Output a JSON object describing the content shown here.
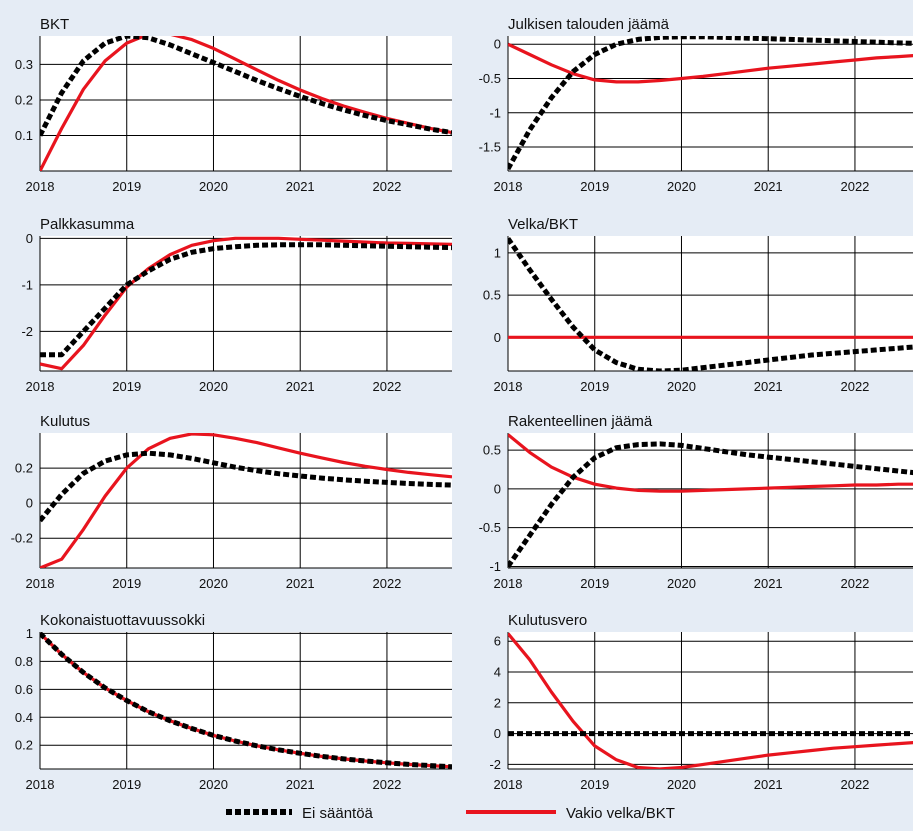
{
  "colors": {
    "background": "#e5ecf5",
    "plot_bg": "#ffffff",
    "ei_saantoa": "#000000",
    "vakio_velka": "#e8141e"
  },
  "legend": {
    "position": "bottom-center",
    "items": [
      "Ei sääntöä",
      "Vakio velka/BKT"
    ]
  },
  "chart_data": [
    {
      "type": "line",
      "title": "BKT",
      "xlabel": "",
      "ylabel": "",
      "xlim": [
        2018,
        2022.75
      ],
      "ylim": [
        0,
        0.38
      ],
      "xticks": [
        "2018",
        "2019",
        "2020",
        "2021",
        "2022"
      ],
      "yticks": [
        "0.1",
        "0.2",
        "0.3"
      ],
      "yticks_values": [
        0.1,
        0.2,
        0.3
      ],
      "x": [
        2018,
        2018.25,
        2018.5,
        2018.75,
        2019,
        2019.25,
        2019.5,
        2019.75,
        2020,
        2020.25,
        2020.5,
        2020.75,
        2021,
        2021.25,
        2021.5,
        2021.75,
        2022,
        2022.25,
        2022.5,
        2022.75
      ],
      "series": [
        {
          "name": "Ei sääntöä",
          "values": [
            0.1,
            0.22,
            0.31,
            0.36,
            0.38,
            0.375,
            0.355,
            0.33,
            0.305,
            0.28,
            0.255,
            0.232,
            0.21,
            0.19,
            0.172,
            0.156,
            0.142,
            0.13,
            0.118,
            0.108
          ]
        },
        {
          "name": "Vakio velka/BKT",
          "values": [
            0.0,
            0.12,
            0.23,
            0.31,
            0.36,
            0.385,
            0.385,
            0.37,
            0.345,
            0.315,
            0.285,
            0.255,
            0.228,
            0.204,
            0.183,
            0.165,
            0.148,
            0.134,
            0.12,
            0.108
          ]
        }
      ]
    },
    {
      "type": "line",
      "title": "Julkisen talouden jäämä",
      "xlabel": "",
      "ylabel": "",
      "xlim": [
        2018,
        2022.75
      ],
      "ylim": [
        -1.85,
        0.12
      ],
      "xticks": [
        "2018",
        "2019",
        "2020",
        "2021",
        "2022"
      ],
      "yticks": [
        "-1.5",
        "-1",
        "-0.5",
        "0"
      ],
      "yticks_values": [
        -1.5,
        -1,
        -0.5,
        0
      ],
      "x": [
        2018,
        2018.25,
        2018.5,
        2018.75,
        2019,
        2019.25,
        2019.5,
        2019.75,
        2020,
        2020.25,
        2020.5,
        2020.75,
        2021,
        2021.25,
        2021.5,
        2021.75,
        2022,
        2022.25,
        2022.5,
        2022.75
      ],
      "series": [
        {
          "name": "Ei sääntöä",
          "values": [
            -1.82,
            -1.25,
            -0.78,
            -0.4,
            -0.15,
            0.0,
            0.07,
            0.1,
            0.11,
            0.11,
            0.1,
            0.09,
            0.08,
            0.07,
            0.06,
            0.05,
            0.04,
            0.03,
            0.02,
            0.01
          ]
        },
        {
          "name": "Vakio velka/BKT",
          "values": [
            0.0,
            -0.15,
            -0.3,
            -0.43,
            -0.52,
            -0.55,
            -0.55,
            -0.53,
            -0.5,
            -0.47,
            -0.43,
            -0.39,
            -0.35,
            -0.32,
            -0.29,
            -0.26,
            -0.23,
            -0.2,
            -0.18,
            -0.16
          ]
        }
      ]
    },
    {
      "type": "line",
      "title": "Palkkasumma",
      "xlabel": "",
      "ylabel": "",
      "xlim": [
        2018,
        2022.75
      ],
      "ylim": [
        -2.85,
        0.05
      ],
      "xticks": [
        "2018",
        "2019",
        "2020",
        "2021",
        "2022"
      ],
      "yticks": [
        "-2",
        "-1",
        "0"
      ],
      "yticks_values": [
        -2,
        -1,
        0
      ],
      "x": [
        2018,
        2018.25,
        2018.5,
        2018.75,
        2019,
        2019.25,
        2019.5,
        2019.75,
        2020,
        2020.25,
        2020.5,
        2020.75,
        2021,
        2021.25,
        2021.5,
        2021.75,
        2022,
        2022.25,
        2022.5,
        2022.75
      ],
      "series": [
        {
          "name": "Ei sääntöä",
          "values": [
            -2.5,
            -2.5,
            -2.0,
            -1.5,
            -1.0,
            -0.7,
            -0.45,
            -0.3,
            -0.22,
            -0.18,
            -0.15,
            -0.14,
            -0.14,
            -0.14,
            -0.15,
            -0.16,
            -0.17,
            -0.18,
            -0.19,
            -0.2
          ]
        },
        {
          "name": "Vakio velka/BKT",
          "values": [
            -2.7,
            -2.8,
            -2.3,
            -1.65,
            -1.05,
            -0.65,
            -0.35,
            -0.15,
            -0.05,
            0.0,
            0.0,
            0.0,
            -0.02,
            -0.04,
            -0.06,
            -0.08,
            -0.1,
            -0.11,
            -0.12,
            -0.13
          ]
        }
      ]
    },
    {
      "type": "line",
      "title": "Velka/BKT",
      "xlabel": "",
      "ylabel": "",
      "xlim": [
        2018,
        2022.75
      ],
      "ylim": [
        -0.4,
        1.2
      ],
      "xticks": [
        "2018",
        "2019",
        "2020",
        "2021",
        "2022"
      ],
      "yticks": [
        "0",
        "0.5",
        "1"
      ],
      "yticks_values": [
        0,
        0.5,
        1
      ],
      "x": [
        2018,
        2018.25,
        2018.5,
        2018.75,
        2019,
        2019.25,
        2019.5,
        2019.75,
        2020,
        2020.25,
        2020.5,
        2020.75,
        2021,
        2021.25,
        2021.5,
        2021.75,
        2022,
        2022.25,
        2022.5,
        2022.75
      ],
      "series": [
        {
          "name": "Ei sääntöä",
          "values": [
            1.17,
            0.8,
            0.45,
            0.12,
            -0.15,
            -0.3,
            -0.38,
            -0.4,
            -0.39,
            -0.36,
            -0.33,
            -0.3,
            -0.27,
            -0.24,
            -0.21,
            -0.19,
            -0.17,
            -0.15,
            -0.13,
            -0.11
          ]
        },
        {
          "name": "Vakio velka/BKT",
          "values": [
            0,
            0,
            0,
            0,
            0,
            0,
            0,
            0,
            0,
            0,
            0,
            0,
            0,
            0,
            0,
            0,
            0,
            0,
            0,
            0
          ]
        }
      ]
    },
    {
      "type": "line",
      "title": "Kulutus",
      "xlabel": "",
      "ylabel": "",
      "xlim": [
        2018,
        2022.75
      ],
      "ylim": [
        -0.37,
        0.4
      ],
      "xticks": [
        "2018",
        "2019",
        "2020",
        "2021",
        "2022"
      ],
      "yticks": [
        "-0.2",
        "0",
        "0.2"
      ],
      "yticks_values": [
        -0.2,
        0,
        0.2
      ],
      "x": [
        2018,
        2018.25,
        2018.5,
        2018.75,
        2019,
        2019.25,
        2019.5,
        2019.75,
        2020,
        2020.25,
        2020.5,
        2020.75,
        2021,
        2021.25,
        2021.5,
        2021.75,
        2022,
        2022.25,
        2022.5,
        2022.75
      ],
      "series": [
        {
          "name": "Ei sääntöä",
          "values": [
            -0.1,
            0.05,
            0.17,
            0.24,
            0.275,
            0.285,
            0.275,
            0.255,
            0.23,
            0.205,
            0.185,
            0.168,
            0.155,
            0.143,
            0.133,
            0.125,
            0.118,
            0.112,
            0.107,
            0.103
          ]
        },
        {
          "name": "Vakio velka/BKT",
          "values": [
            -0.37,
            -0.32,
            -0.15,
            0.04,
            0.2,
            0.31,
            0.37,
            0.395,
            0.39,
            0.37,
            0.345,
            0.315,
            0.285,
            0.258,
            0.232,
            0.21,
            0.192,
            0.175,
            0.162,
            0.15
          ]
        }
      ]
    },
    {
      "type": "line",
      "title": "Rakenteellinen jäämä",
      "xlabel": "",
      "ylabel": "",
      "xlim": [
        2018,
        2022.75
      ],
      "ylim": [
        -1.02,
        0.72
      ],
      "xticks": [
        "2018",
        "2019",
        "2020",
        "2021",
        "2022"
      ],
      "yticks": [
        "-1",
        "-0.5",
        "0",
        "0.5"
      ],
      "yticks_values": [
        -1,
        -0.5,
        0,
        0.5
      ],
      "x": [
        2018,
        2018.25,
        2018.5,
        2018.75,
        2019,
        2019.25,
        2019.5,
        2019.75,
        2020,
        2020.25,
        2020.5,
        2020.75,
        2021,
        2021.25,
        2021.5,
        2021.75,
        2022,
        2022.25,
        2022.5,
        2022.75
      ],
      "series": [
        {
          "name": "Ei sääntöä",
          "values": [
            -1.0,
            -0.6,
            -0.2,
            0.15,
            0.4,
            0.53,
            0.57,
            0.58,
            0.56,
            0.52,
            0.48,
            0.44,
            0.41,
            0.38,
            0.35,
            0.32,
            0.29,
            0.26,
            0.23,
            0.2
          ]
        },
        {
          "name": "Vakio velka/BKT",
          "values": [
            0.7,
            0.47,
            0.28,
            0.15,
            0.06,
            0.01,
            -0.02,
            -0.03,
            -0.03,
            -0.02,
            -0.01,
            0.0,
            0.01,
            0.02,
            0.03,
            0.04,
            0.05,
            0.05,
            0.06,
            0.06
          ]
        }
      ]
    },
    {
      "type": "line",
      "title": "Kokonaistuottavuussokki",
      "xlabel": "",
      "ylabel": "",
      "xlim": [
        2018,
        2022.75
      ],
      "ylim": [
        0.03,
        1.01
      ],
      "xticks": [
        "2018",
        "2019",
        "2020",
        "2021",
        "2022"
      ],
      "yticks": [
        "0.2",
        "0.4",
        "0.6",
        "0.8",
        "1"
      ],
      "yticks_values": [
        0.2,
        0.4,
        0.6,
        0.8,
        1
      ],
      "x": [
        2018,
        2018.25,
        2018.5,
        2018.75,
        2019,
        2019.25,
        2019.5,
        2019.75,
        2020,
        2020.25,
        2020.5,
        2020.75,
        2021,
        2021.25,
        2021.5,
        2021.75,
        2022,
        2022.25,
        2022.5,
        2022.75
      ],
      "series": [
        {
          "name": "Ei sääntöä",
          "values": [
            1.0,
            0.85,
            0.72,
            0.61,
            0.52,
            0.44,
            0.375,
            0.32,
            0.27,
            0.23,
            0.196,
            0.167,
            0.142,
            0.12,
            0.102,
            0.087,
            0.074,
            0.063,
            0.054,
            0.046
          ]
        },
        {
          "name": "Vakio velka/BKT",
          "values": [
            1.0,
            0.85,
            0.72,
            0.61,
            0.52,
            0.44,
            0.375,
            0.32,
            0.27,
            0.23,
            0.196,
            0.167,
            0.142,
            0.12,
            0.102,
            0.087,
            0.074,
            0.063,
            0.054,
            0.046
          ]
        }
      ]
    },
    {
      "type": "line",
      "title": "Kulutusvero",
      "xlabel": "",
      "ylabel": "",
      "xlim": [
        2018,
        2022.75
      ],
      "ylim": [
        -2.3,
        6.6
      ],
      "xticks": [
        "2018",
        "2019",
        "2020",
        "2021",
        "2022"
      ],
      "yticks": [
        "-2",
        "0",
        "2",
        "4",
        "6"
      ],
      "yticks_values": [
        -2,
        0,
        2,
        4,
        6
      ],
      "x": [
        2018,
        2018.25,
        2018.5,
        2018.75,
        2019,
        2019.25,
        2019.5,
        2019.75,
        2020,
        2020.25,
        2020.5,
        2020.75,
        2021,
        2021.25,
        2021.5,
        2021.75,
        2022,
        2022.25,
        2022.5,
        2022.75
      ],
      "series": [
        {
          "name": "Ei sääntöä",
          "values": [
            0,
            0,
            0,
            0,
            0,
            0,
            0,
            0,
            0,
            0,
            0,
            0,
            0,
            0,
            0,
            0,
            0,
            0,
            0,
            0
          ]
        },
        {
          "name": "Vakio velka/BKT",
          "values": [
            6.5,
            4.8,
            2.7,
            0.8,
            -0.8,
            -1.7,
            -2.2,
            -2.3,
            -2.2,
            -2.0,
            -1.8,
            -1.6,
            -1.4,
            -1.25,
            -1.1,
            -0.95,
            -0.85,
            -0.75,
            -0.65,
            -0.55
          ]
        }
      ]
    }
  ]
}
